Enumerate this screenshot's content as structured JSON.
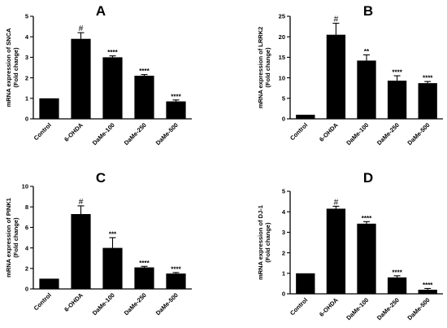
{
  "chart_data": [
    {
      "panel": "A",
      "type": "bar",
      "categories": [
        "Control",
        "6-OHDA",
        "DaMe-100",
        "DaMe-250",
        "DaMe-500"
      ],
      "values": [
        1.0,
        3.9,
        3.0,
        2.1,
        0.85
      ],
      "errors": [
        0.0,
        0.3,
        0.07,
        0.06,
        0.07
      ],
      "significance": [
        "",
        "#",
        "****",
        "****",
        "****"
      ],
      "ylabel_lines": [
        "mRNA expression of SNCA",
        "(Fold change)"
      ],
      "ylim": [
        0,
        5
      ],
      "yticks": [
        0,
        1,
        2,
        3,
        4,
        5
      ],
      "grid": false,
      "bar_color": "#000000"
    },
    {
      "panel": "B",
      "type": "bar",
      "categories": [
        "Control",
        "6-OHDA",
        "DaMe-100",
        "DaMe-250",
        "DaMe-500"
      ],
      "values": [
        1.0,
        20.5,
        14.2,
        9.3,
        8.7
      ],
      "errors": [
        0.0,
        2.8,
        1.4,
        1.2,
        0.4
      ],
      "significance": [
        "",
        "#",
        "**",
        "****",
        "****"
      ],
      "ylabel_lines": [
        "mRNA expression of LRRK2",
        "(Fold change)"
      ],
      "ylim": [
        0,
        25
      ],
      "yticks": [
        0,
        5,
        10,
        15,
        20,
        25
      ],
      "grid": false,
      "bar_color": "#000000"
    },
    {
      "panel": "C",
      "type": "bar",
      "categories": [
        "Control",
        "6-OHDA",
        "DaMe-100",
        "DaMe-250",
        "DaMe-500"
      ],
      "values": [
        1.0,
        7.3,
        4.0,
        2.1,
        1.5
      ],
      "errors": [
        0.0,
        0.8,
        1.0,
        0.1,
        0.1
      ],
      "significance": [
        "",
        "#",
        "***",
        "****",
        "****"
      ],
      "ylabel_lines": [
        "mRNA expression of PINK1",
        "(Fold change)"
      ],
      "ylim": [
        0,
        10
      ],
      "yticks": [
        0,
        2,
        4,
        6,
        8,
        10
      ],
      "grid": false,
      "bar_color": "#000000"
    },
    {
      "panel": "D",
      "type": "bar",
      "categories": [
        "Control",
        "6-OHDA",
        "DaMe-100",
        "DaMe-250",
        "DaMe-500"
      ],
      "values": [
        1.0,
        4.15,
        3.42,
        0.8,
        0.2
      ],
      "errors": [
        0.0,
        0.12,
        0.1,
        0.08,
        0.06
      ],
      "significance": [
        "",
        "#",
        "****",
        "****",
        "****"
      ],
      "ylabel_lines": [
        "mRNA expression of DJ-1",
        "(Fold change)"
      ],
      "ylim": [
        0,
        5
      ],
      "yticks": [
        0,
        1,
        2,
        3,
        4,
        5
      ],
      "grid": false,
      "bar_color": "#000000"
    }
  ]
}
